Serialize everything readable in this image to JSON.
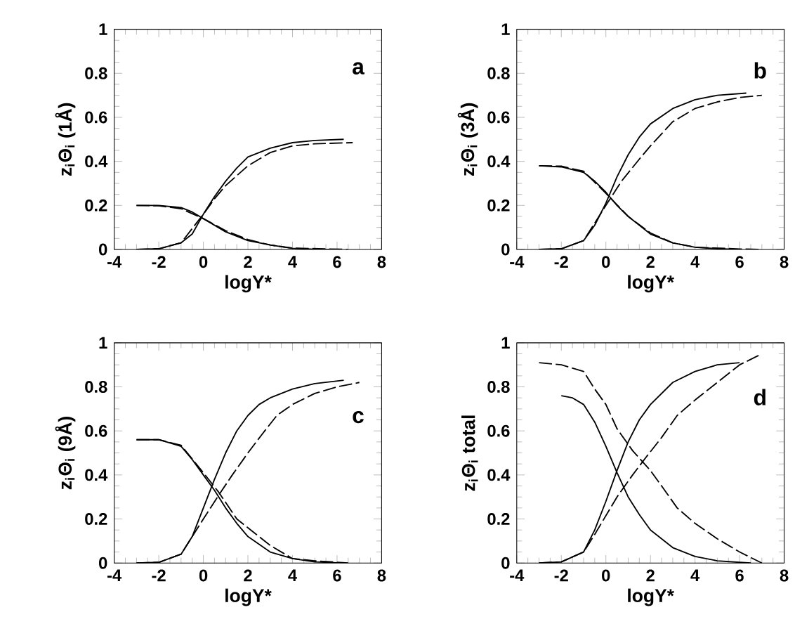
{
  "chart_data": [
    {
      "type": "line",
      "xlabel": "logY*",
      "ylabel": "z$_{i}$Θ$_{i}$ (1Å)",
      "annotations": [
        "a"
      ],
      "xlim": [
        -4,
        8
      ],
      "ylim": [
        0,
        1
      ],
      "xticks": [
        -4,
        -2,
        0,
        2,
        4,
        6,
        8
      ],
      "yticks": [
        0,
        0.2,
        0.4,
        0.6,
        0.8,
        1
      ],
      "series": [
        {
          "color": "#000000",
          "line_style": "solid",
          "x": [
            -3,
            -2,
            -1,
            -0.5,
            0,
            0.5,
            1,
            1.5,
            2,
            3,
            4,
            5,
            6.3
          ],
          "values": [
            0,
            0.003,
            0.03,
            0.07,
            0.16,
            0.24,
            0.31,
            0.37,
            0.42,
            0.46,
            0.485,
            0.495,
            0.5
          ]
        },
        {
          "color": "#000000",
          "line_style": "dashed",
          "x": [
            -3,
            -2,
            -1,
            0,
            0.5,
            1,
            2,
            3,
            4,
            5,
            6.7
          ],
          "values": [
            0,
            0.003,
            0.03,
            0.16,
            0.23,
            0.29,
            0.38,
            0.44,
            0.47,
            0.48,
            0.485
          ]
        },
        {
          "color": "#000000",
          "line_style": "solid",
          "x": [
            -3,
            -2,
            -1,
            -0.5,
            0,
            0.5,
            1,
            2,
            3,
            4,
            5,
            6
          ],
          "values": [
            0.2,
            0.2,
            0.19,
            0.17,
            0.14,
            0.11,
            0.08,
            0.04,
            0.02,
            0.005,
            0.001,
            0
          ]
        },
        {
          "color": "#000000",
          "line_style": "dashed",
          "x": [
            -3,
            -2,
            -1,
            0,
            1,
            2,
            3,
            4,
            6.5
          ],
          "values": [
            0.2,
            0.198,
            0.185,
            0.14,
            0.085,
            0.045,
            0.02,
            0.006,
            0
          ]
        }
      ]
    },
    {
      "type": "line",
      "xlabel": "logY*",
      "ylabel": "z$_{i}$Θ$_{i}$ (3Å)",
      "annotations": [
        "b"
      ],
      "xlim": [
        -4,
        8
      ],
      "ylim": [
        0,
        1
      ],
      "xticks": [
        -4,
        -2,
        0,
        2,
        4,
        6,
        8
      ],
      "yticks": [
        0,
        0.2,
        0.4,
        0.6,
        0.8,
        1
      ],
      "series": [
        {
          "color": "#000000",
          "line_style": "solid",
          "x": [
            -3,
            -2,
            -1,
            -0.5,
            0,
            0.5,
            1,
            1.5,
            2,
            3,
            4,
            5,
            6.3
          ],
          "values": [
            0,
            0.003,
            0.04,
            0.11,
            0.21,
            0.33,
            0.43,
            0.51,
            0.57,
            0.64,
            0.68,
            0.7,
            0.71
          ]
        },
        {
          "color": "#000000",
          "line_style": "dashed",
          "x": [
            -3,
            -2,
            -1,
            0,
            0.7,
            1.5,
            2,
            3,
            4,
            5,
            6,
            7
          ],
          "values": [
            0,
            0.003,
            0.04,
            0.2,
            0.31,
            0.41,
            0.47,
            0.58,
            0.64,
            0.67,
            0.69,
            0.7
          ]
        },
        {
          "color": "#000000",
          "line_style": "solid",
          "x": [
            -3,
            -2,
            -1,
            -0.5,
            0,
            0.5,
            1,
            2,
            3,
            4,
            5,
            6
          ],
          "values": [
            0.38,
            0.375,
            0.35,
            0.31,
            0.26,
            0.2,
            0.15,
            0.07,
            0.03,
            0.01,
            0.003,
            0
          ]
        },
        {
          "color": "#000000",
          "line_style": "dashed",
          "x": [
            -3,
            -2,
            -1,
            0,
            1,
            2,
            3,
            4,
            6,
            7
          ],
          "values": [
            0.38,
            0.378,
            0.355,
            0.255,
            0.15,
            0.075,
            0.03,
            0.01,
            0.002,
            0
          ]
        }
      ]
    },
    {
      "type": "line",
      "xlabel": "logY*",
      "ylabel": "z$_{i}$Θ$_{i}$ (9Å)",
      "annotations": [
        "c"
      ],
      "xlim": [
        -4,
        8
      ],
      "ylim": [
        0,
        1
      ],
      "xticks": [
        -4,
        -2,
        0,
        2,
        4,
        6,
        8
      ],
      "yticks": [
        0,
        0.2,
        0.4,
        0.6,
        0.8,
        1
      ],
      "series": [
        {
          "color": "#000000",
          "line_style": "solid",
          "x": [
            -3,
            -2,
            -1,
            -0.5,
            0,
            0.5,
            1,
            1.5,
            2,
            2.5,
            3,
            4,
            5,
            6.3
          ],
          "values": [
            0,
            0.003,
            0.04,
            0.12,
            0.25,
            0.38,
            0.5,
            0.6,
            0.67,
            0.72,
            0.75,
            0.79,
            0.815,
            0.83
          ]
        },
        {
          "color": "#000000",
          "line_style": "dashed",
          "x": [
            -3,
            -2,
            -1,
            0,
            0.7,
            1.3,
            2,
            2.6,
            3.3,
            4,
            5,
            6,
            7
          ],
          "values": [
            0,
            0.003,
            0.04,
            0.2,
            0.31,
            0.4,
            0.5,
            0.58,
            0.67,
            0.72,
            0.77,
            0.8,
            0.82
          ]
        },
        {
          "color": "#000000",
          "line_style": "solid",
          "x": [
            -3,
            -2,
            -1,
            -0.5,
            0,
            0.5,
            1,
            1.5,
            2,
            3,
            4,
            5,
            6
          ],
          "values": [
            0.56,
            0.56,
            0.53,
            0.47,
            0.4,
            0.33,
            0.25,
            0.18,
            0.12,
            0.05,
            0.02,
            0.005,
            0.001
          ]
        },
        {
          "color": "#000000",
          "line_style": "dashed",
          "x": [
            -3,
            -2,
            -1,
            0,
            0.7,
            1.5,
            2,
            3,
            4,
            5,
            6.5
          ],
          "values": [
            0.56,
            0.56,
            0.535,
            0.41,
            0.32,
            0.2,
            0.16,
            0.08,
            0.02,
            0.01,
            0
          ]
        }
      ]
    },
    {
      "type": "line",
      "xlabel": "logY*",
      "ylabel": "z$_{i}$Θ$_{i}$ total",
      "annotations": [
        "d"
      ],
      "xlim": [
        -4,
        8
      ],
      "ylim": [
        0,
        1
      ],
      "xticks": [
        -4,
        -2,
        0,
        2,
        4,
        6,
        8
      ],
      "yticks": [
        0,
        0.2,
        0.4,
        0.6,
        0.8,
        1
      ],
      "series": [
        {
          "color": "#000000",
          "line_style": "solid",
          "x": [
            -3,
            -2,
            -1,
            -0.5,
            0,
            0.5,
            1,
            1.5,
            2,
            3,
            4,
            5,
            6
          ],
          "values": [
            0,
            0.005,
            0.05,
            0.15,
            0.28,
            0.42,
            0.55,
            0.65,
            0.72,
            0.82,
            0.87,
            0.9,
            0.91
          ]
        },
        {
          "color": "#000000",
          "line_style": "dashed",
          "x": [
            -3,
            -2,
            -1,
            -0.5,
            0.5,
            1.2,
            1.8,
            2.5,
            3.2,
            4,
            5,
            6,
            7
          ],
          "values": [
            0,
            0.005,
            0.05,
            0.13,
            0.3,
            0.4,
            0.48,
            0.57,
            0.67,
            0.74,
            0.82,
            0.9,
            0.95
          ]
        },
        {
          "color": "#000000",
          "line_style": "solid",
          "x": [
            -2,
            -1.5,
            -1,
            -0.5,
            0,
            0.5,
            1,
            1.5,
            2,
            3,
            4,
            5,
            6,
            6.5
          ],
          "values": [
            0.76,
            0.75,
            0.72,
            0.64,
            0.53,
            0.41,
            0.3,
            0.22,
            0.15,
            0.07,
            0.03,
            0.01,
            0.003,
            0
          ]
        },
        {
          "color": "#000000",
          "line_style": "dashed",
          "x": [
            -3,
            -2,
            -1,
            -0.5,
            0,
            0.5,
            1.2,
            2,
            2.5,
            3.2,
            4,
            5,
            6,
            7
          ],
          "values": [
            0.91,
            0.9,
            0.87,
            0.79,
            0.72,
            0.61,
            0.51,
            0.42,
            0.35,
            0.25,
            0.18,
            0.11,
            0.05,
            0
          ]
        }
      ]
    }
  ]
}
